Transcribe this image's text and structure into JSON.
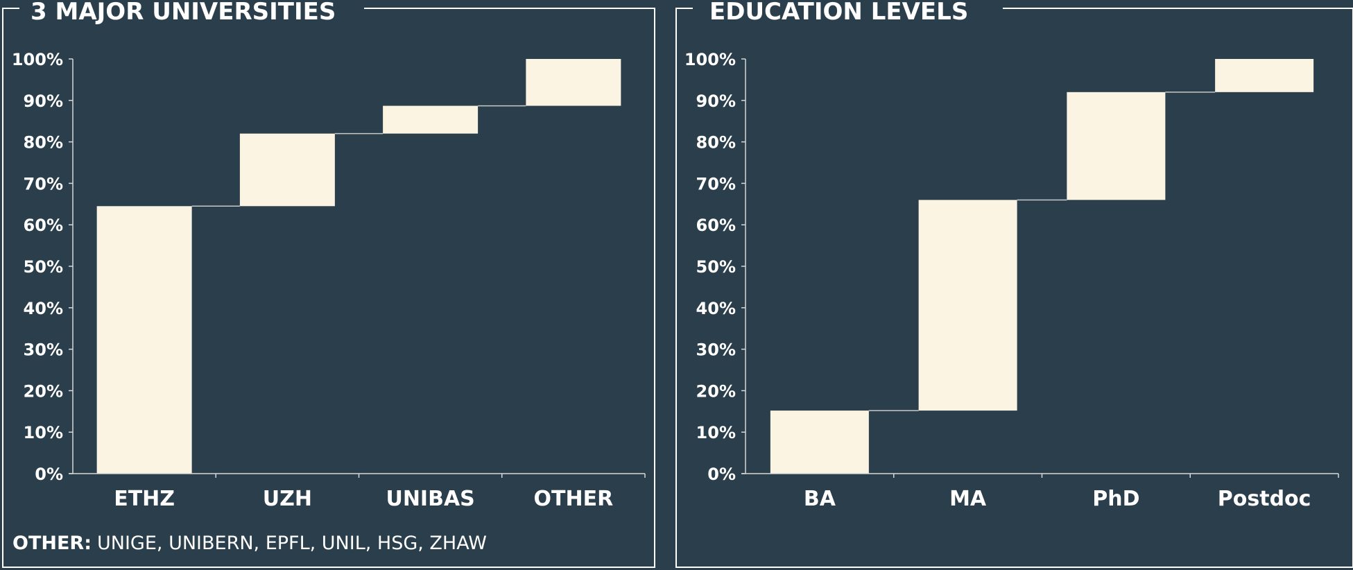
{
  "colors": {
    "background": "#2a3e4b",
    "bar": "#fbf4e2",
    "axis": "#d8d8d8",
    "text": "#ffffff"
  },
  "chart_data": [
    {
      "type": "bar",
      "subtype": "waterfall",
      "title": "3 MAJOR UNIVERSITIES",
      "categories": [
        "ETHZ",
        "UZH",
        "UNIBAS",
        "OTHER"
      ],
      "values": [
        64.5,
        17.5,
        6.7,
        11.3
      ],
      "ylim": [
        0,
        100
      ],
      "yticks": [
        "0%",
        "10%",
        "20%",
        "30%",
        "40%",
        "50%",
        "60%",
        "70%",
        "80%",
        "90%",
        "100%"
      ],
      "grid": false,
      "note_label": "OTHER:",
      "note_text": "UNIGE, UNIBERN, EPFL, UNIL, HSG, ZHAW"
    },
    {
      "type": "bar",
      "subtype": "waterfall",
      "title": "EDUCATION LEVELS",
      "categories": [
        "BA",
        "MA",
        "PhD",
        "Postdoc"
      ],
      "values": [
        15.2,
        50.8,
        26,
        8
      ],
      "ylim": [
        0,
        100
      ],
      "yticks": [
        "0%",
        "10%",
        "20%",
        "30%",
        "40%",
        "50%",
        "60%",
        "70%",
        "80%",
        "90%",
        "100%"
      ],
      "grid": false
    }
  ]
}
